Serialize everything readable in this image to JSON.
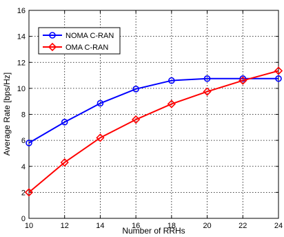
{
  "chart_data": {
    "type": "line",
    "title": "",
    "xlabel": "Number of RRHs",
    "ylabel": "Average Rate [bps/Hz]",
    "x": [
      10,
      12,
      14,
      16,
      18,
      20,
      22,
      24
    ],
    "xlim": [
      10,
      24
    ],
    "ylim": [
      0,
      16
    ],
    "xticks": [
      10,
      12,
      14,
      16,
      18,
      20,
      22,
      24
    ],
    "yticks": [
      0,
      2,
      4,
      6,
      8,
      10,
      12,
      14,
      16
    ],
    "grid": true,
    "legend_position": "top-left",
    "series": [
      {
        "name": "NOMA C-RAN",
        "color": "#0000ff",
        "marker": "circle",
        "values": [
          5.8,
          7.4,
          8.85,
          9.95,
          10.6,
          10.75,
          10.75,
          10.75
        ]
      },
      {
        "name": "OMA C-RAN",
        "color": "#ff0000",
        "marker": "diamond",
        "values": [
          2.0,
          4.3,
          6.2,
          7.6,
          8.8,
          9.75,
          10.6,
          11.35
        ]
      }
    ]
  }
}
